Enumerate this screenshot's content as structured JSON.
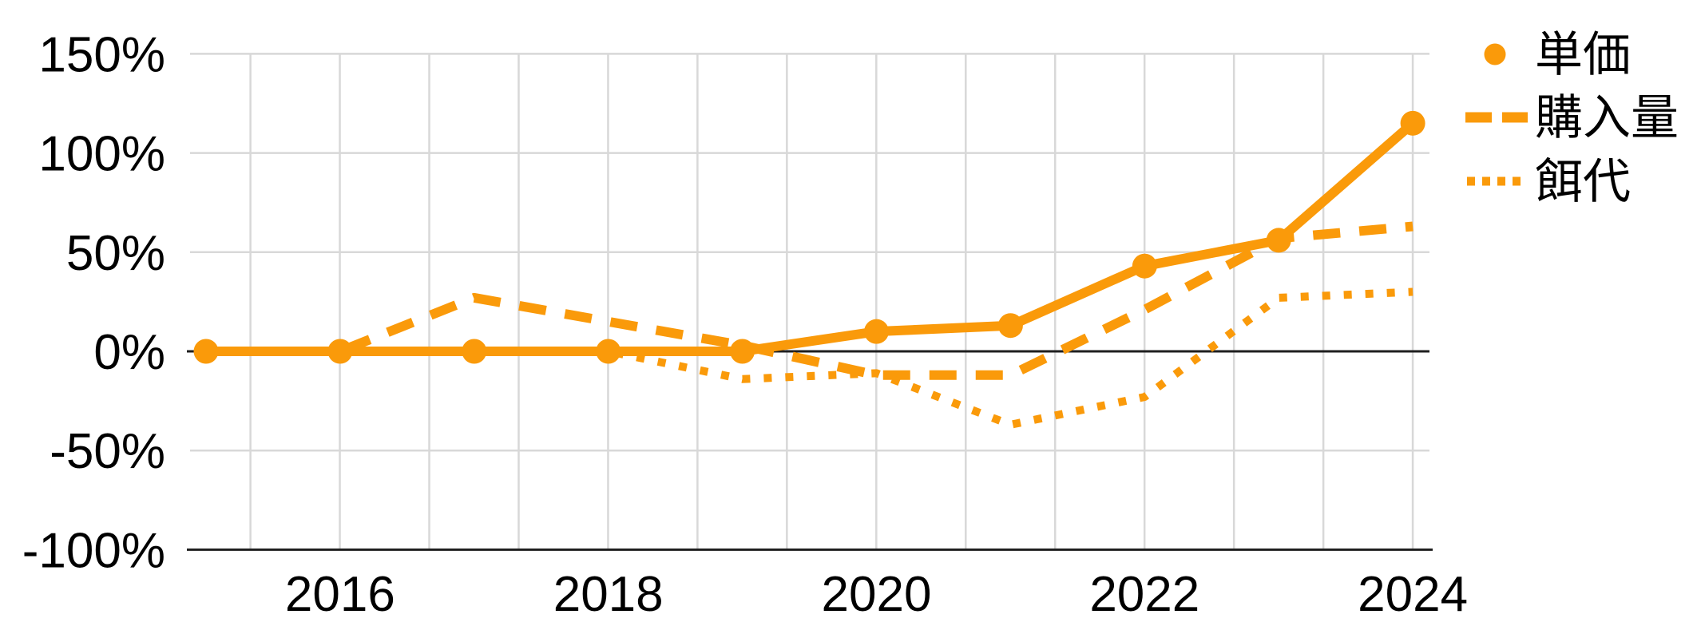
{
  "chart": {
    "background_color": "#ffffff",
    "series_color": "#FA9A0A",
    "grid_color": "#D8D8D8",
    "axis_line_color": "#1F1F1F",
    "label_color": "#000000"
  },
  "chart_data": {
    "type": "line",
    "title": "",
    "xlabel": "",
    "ylabel": "",
    "x": [
      2015,
      2016,
      2017,
      2018,
      2019,
      2020,
      2021,
      2022,
      2023,
      2024
    ],
    "series": [
      {
        "name": "単価",
        "line_style": "solid",
        "marker": "circle",
        "values_pct": [
          0,
          0,
          0,
          0,
          0,
          10,
          13,
          43,
          56,
          115
        ]
      },
      {
        "name": "購入量",
        "line_style": "dashed",
        "marker": "none",
        "values_pct": [
          0,
          0,
          27,
          15,
          3,
          -12,
          -12,
          21,
          57,
          63
        ]
      },
      {
        "name": "餌代",
        "line_style": "dotted",
        "marker": "none",
        "values_pct": [
          0,
          0,
          0,
          0,
          -14,
          -11,
          -37,
          -23,
          27,
          30
        ]
      }
    ],
    "ylim": [
      -100,
      150
    ],
    "yticks": [
      {
        "value": 150,
        "label": "150%"
      },
      {
        "value": 100,
        "label": "100%"
      },
      {
        "value": 50,
        "label": "50%"
      },
      {
        "value": 0,
        "label": "0%"
      },
      {
        "value": -50,
        "label": "-50%"
      },
      {
        "value": -100,
        "label": "-100%"
      }
    ],
    "xticks": [
      {
        "value": 2016,
        "label": "2016"
      },
      {
        "value": 2018,
        "label": "2018"
      },
      {
        "value": 2020,
        "label": "2020"
      },
      {
        "value": 2022,
        "label": "2022"
      },
      {
        "value": 2024,
        "label": "2024"
      }
    ],
    "grid": true,
    "legend_position": "right"
  },
  "legend": {
    "items": [
      {
        "label": "単価",
        "marker": "dot"
      },
      {
        "label": "購入量",
        "marker": "dashes"
      },
      {
        "label": "餌代",
        "marker": "dots"
      }
    ]
  }
}
